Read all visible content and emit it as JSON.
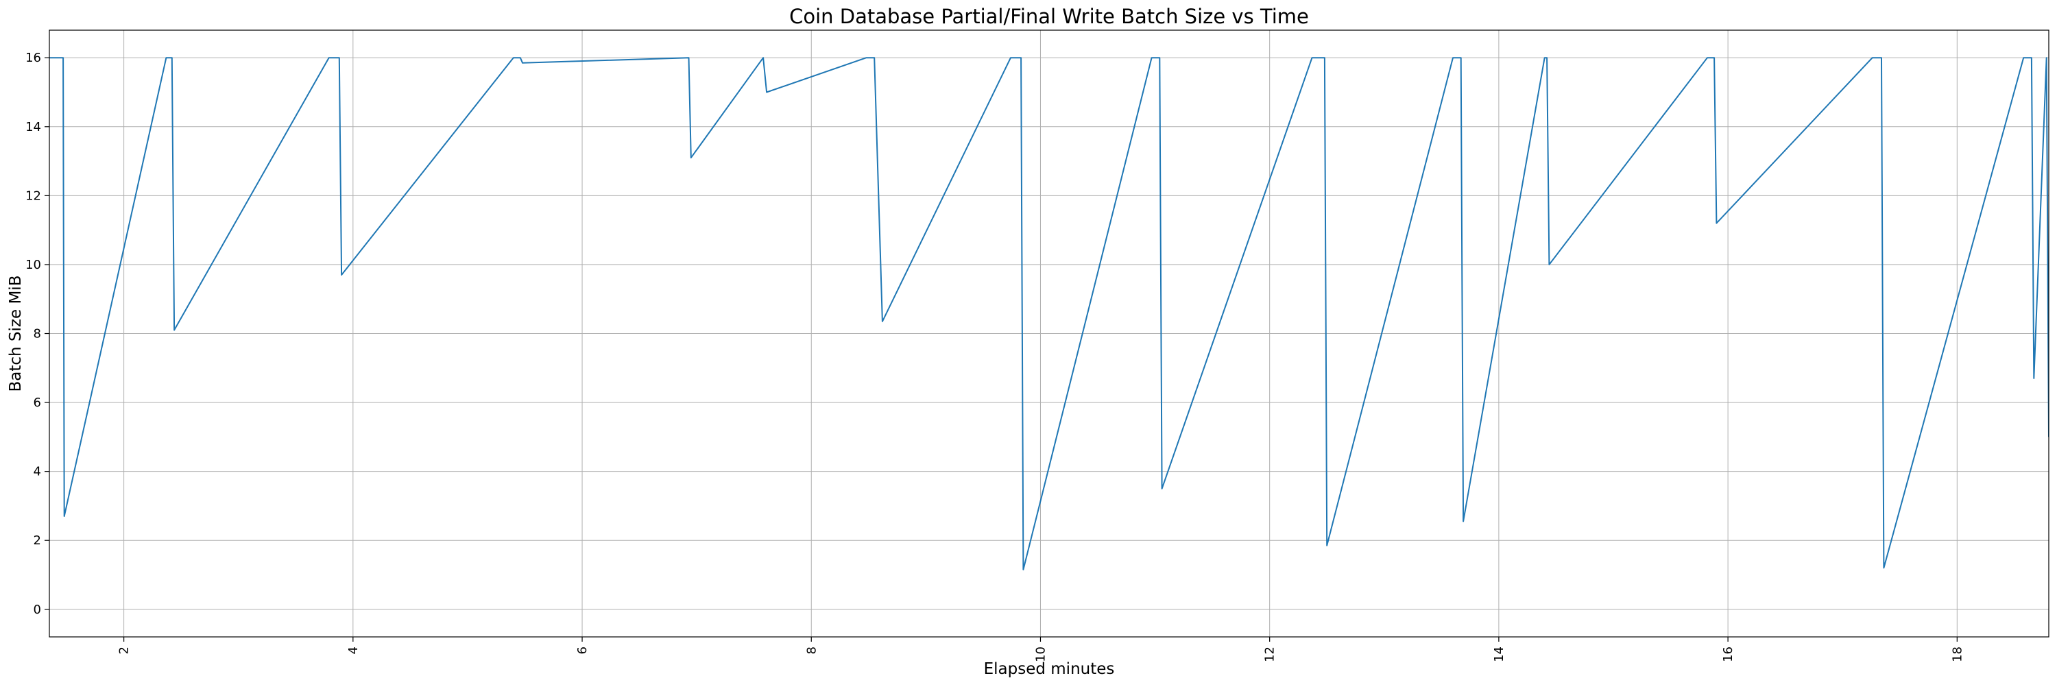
{
  "chart_data": {
    "type": "line",
    "title": "Coin Database Partial/Final Write Batch Size vs Time",
    "xlabel": "Elapsed minutes",
    "ylabel": "Batch Size MiB",
    "xlim": [
      1.35,
      18.8
    ],
    "ylim": [
      -0.8,
      16.8
    ],
    "xticks": [
      2,
      4,
      6,
      8,
      10,
      12,
      14,
      16,
      18
    ],
    "xtick_labels": [
      "2",
      "4",
      "6",
      "8",
      "10",
      "12",
      "14",
      "16",
      "18"
    ],
    "yticks": [
      0,
      2,
      4,
      6,
      8,
      10,
      12,
      14,
      16
    ],
    "ytick_labels": [
      "0",
      "2",
      "4",
      "6",
      "8",
      "10",
      "12",
      "14",
      "16"
    ],
    "xtick_rotation": "vertical",
    "grid": true,
    "line_color": "#1f77b4",
    "series": [
      {
        "x": [
          1.35,
          1.47,
          1.47,
          1.48,
          2.37,
          2.42,
          2.42,
          2.44,
          3.79,
          3.88,
          3.88,
          3.9,
          5.4,
          5.46,
          5.48,
          6.93,
          6.95,
          7.58,
          7.61,
          8.48,
          8.55,
          8.62,
          9.74,
          9.83,
          9.85,
          10.97,
          11.04,
          11.06,
          12.37,
          12.48,
          12.5,
          13.6,
          13.67,
          13.69,
          14.4,
          14.42,
          14.44,
          15.82,
          15.88,
          15.9,
          17.26,
          17.34,
          17.36,
          18.58,
          18.65,
          18.67,
          18.78,
          18.8
        ],
        "y": [
          16.0,
          16.0,
          16.0,
          2.7,
          16.0,
          16.0,
          16.0,
          8.1,
          16.0,
          16.0,
          16.0,
          9.7,
          16.0,
          16.0,
          15.85,
          16.0,
          13.1,
          16.0,
          15.0,
          16.0,
          16.0,
          8.35,
          16.0,
          16.0,
          1.15,
          16.0,
          16.0,
          3.5,
          16.0,
          16.0,
          1.85,
          16.0,
          16.0,
          2.55,
          16.0,
          16.0,
          10.0,
          16.0,
          16.0,
          11.2,
          16.0,
          16.0,
          1.2,
          16.0,
          16.0,
          6.7,
          16.0,
          5.0
        ]
      }
    ]
  }
}
